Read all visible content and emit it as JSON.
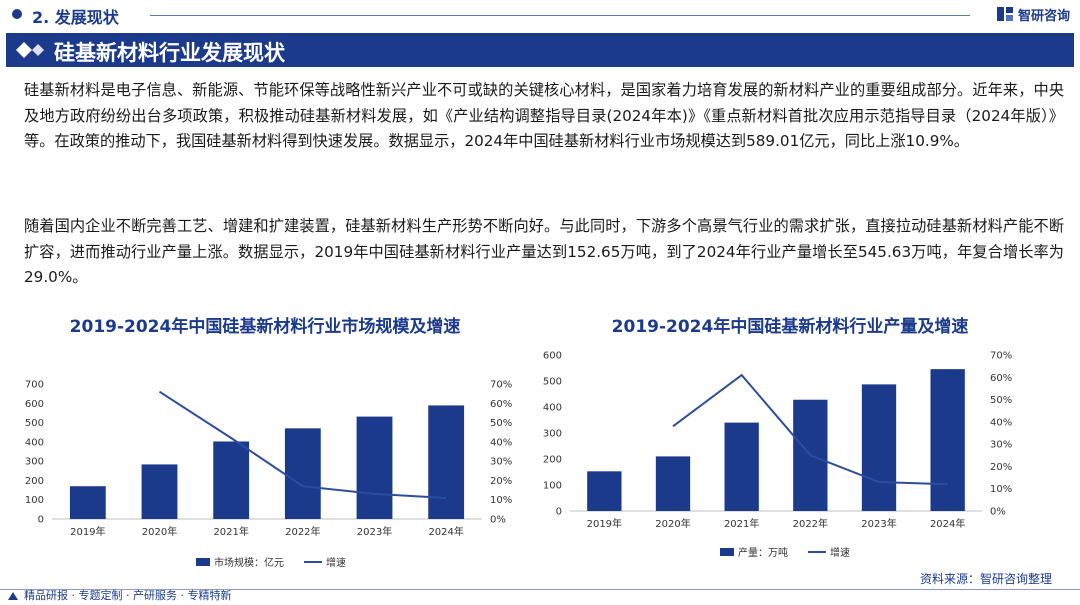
{
  "header": {
    "section_label": "2. 发展现状",
    "logo_text": "智研咨询",
    "logo_icon": "zhiyan-logo-icon"
  },
  "title": "硅基新材料行业发展现状",
  "paragraphs": [
    "硅基新材料是电子信息、新能源、节能环保等战略性新兴产业不可或缺的关键核心材料，是国家着力培育发展的新材料产业的重要组成部分。近年来，中央及地方政府纷纷出台多项政策，积极推动硅基新材料发展，如《产业结构调整指导目录(2024年本)》《重点新材料首批次应用示范指导目录（2024年版）》等。在政策的推动下，我国硅基新材料得到快速发展。数据显示，2024年中国硅基新材料行业市场规模达到589.01亿元，同比上涨10.9%。",
    "随着国内企业不断完善工艺、增建和扩建装置，硅基新材料生产形势不断向好。与此同时，下游多个高景气行业的需求扩张，直接拉动硅基新材料产能不断扩容，进而推动行业产量上涨。数据显示，2019年中国硅基新材料行业产量达到152.65万吨，到了2024年行业产量增长至545.63万吨，年复合增长率为29.0%。"
  ],
  "colors": {
    "brand": "#1b3a8c",
    "bar": "#1b3a8c",
    "line": "#2c4d9e"
  },
  "chart_data": [
    {
      "type": "bar",
      "title": "2019-2024年中国硅基新材料行业市场规模及增速",
      "categories": [
        "2019年",
        "2020年",
        "2021年",
        "2022年",
        "2023年",
        "2024年"
      ],
      "series": [
        {
          "name": "市场规模：亿元",
          "type": "bar",
          "axis": "left",
          "values": [
            170,
            283,
            402,
            470,
            531,
            589.01
          ]
        },
        {
          "name": "增速",
          "type": "line",
          "axis": "right",
          "values": [
            null,
            66,
            42,
            17,
            13,
            10.9
          ]
        }
      ],
      "ylim": [
        0,
        700
      ],
      "yticks": [
        "0",
        "100",
        "200",
        "300",
        "400",
        "500",
        "600",
        "700"
      ],
      "y2lim": [
        0,
        70
      ],
      "y2ticks": [
        "0%",
        "10%",
        "20%",
        "30%",
        "40%",
        "50%",
        "60%",
        "70%"
      ],
      "legend": "bottom"
    },
    {
      "type": "bar",
      "title": "2019-2024年中国硅基新材料行业产量及增速",
      "categories": [
        "2019年",
        "2020年",
        "2021年",
        "2022年",
        "2023年",
        "2024年"
      ],
      "series": [
        {
          "name": "产量：万吨",
          "type": "bar",
          "axis": "left",
          "values": [
            152.65,
            210,
            340,
            428,
            487,
            545.63
          ]
        },
        {
          "name": "增速",
          "type": "line",
          "axis": "right",
          "values": [
            null,
            38,
            61,
            25,
            13,
            12
          ]
        }
      ],
      "ylim": [
        0,
        600
      ],
      "yticks": [
        "0",
        "100",
        "200",
        "300",
        "400",
        "500",
        "600"
      ],
      "y2lim": [
        0,
        70
      ],
      "y2ticks": [
        "0%",
        "10%",
        "20%",
        "30%",
        "40%",
        "50%",
        "60%",
        "70%"
      ],
      "legend": "bottom"
    }
  ],
  "footer": {
    "tagline": "精品研报 · 专题定制 · 产研服务 · 专精特新",
    "source": "资料来源：智研咨询整理"
  }
}
